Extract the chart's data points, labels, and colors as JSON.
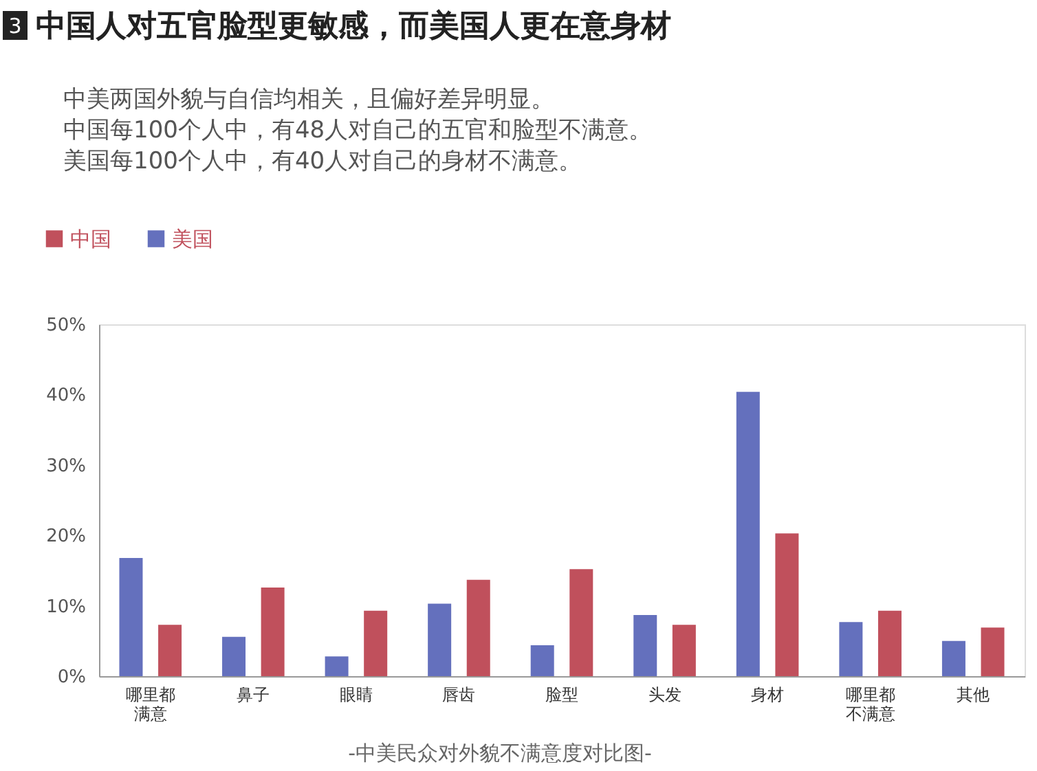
{
  "chart_data": {
    "type": "bar",
    "title": "中国人对五官脸型更敏感，而美国人更在意身材",
    "subtitle": "中美两国外貌与自信均相关，且偏好差异明显。",
    "annotations": [
      "3",
      "中国每100个人中，有48人对自己的五官和脸型不满意。",
      "美国每100个人中，有40人对自己的身材不满意。",
      "-中美民众对外貌不满意度对比图-"
    ],
    "categories": [
      "哪里都满意",
      "鼻子",
      "眼睛",
      "唇齿",
      "脸型",
      "头发",
      "身材",
      "哪里都不满意",
      "其他"
    ],
    "series": [
      {
        "name": "中国",
        "color": "#c0505c",
        "values": [
          7.3,
          12.6,
          9.3,
          13.7,
          15.2,
          7.3,
          20.3,
          9.3,
          6.9
        ]
      },
      {
        "name": "美国",
        "color": "#6470bd",
        "values": [
          16.8,
          5.6,
          2.8,
          10.3,
          4.4,
          8.7,
          40.4,
          7.7,
          5.0
        ]
      }
    ],
    "ylim": [
      0,
      50
    ],
    "yticks": [
      {
        "value": 0,
        "label": "0%"
      },
      {
        "value": 10,
        "label": "10%"
      },
      {
        "value": 20,
        "label": "20%"
      },
      {
        "value": 30,
        "label": "30%"
      },
      {
        "value": 40,
        "label": "40%"
      },
      {
        "value": 50,
        "label": "50%"
      }
    ],
    "grid": false,
    "legend": "top left"
  }
}
